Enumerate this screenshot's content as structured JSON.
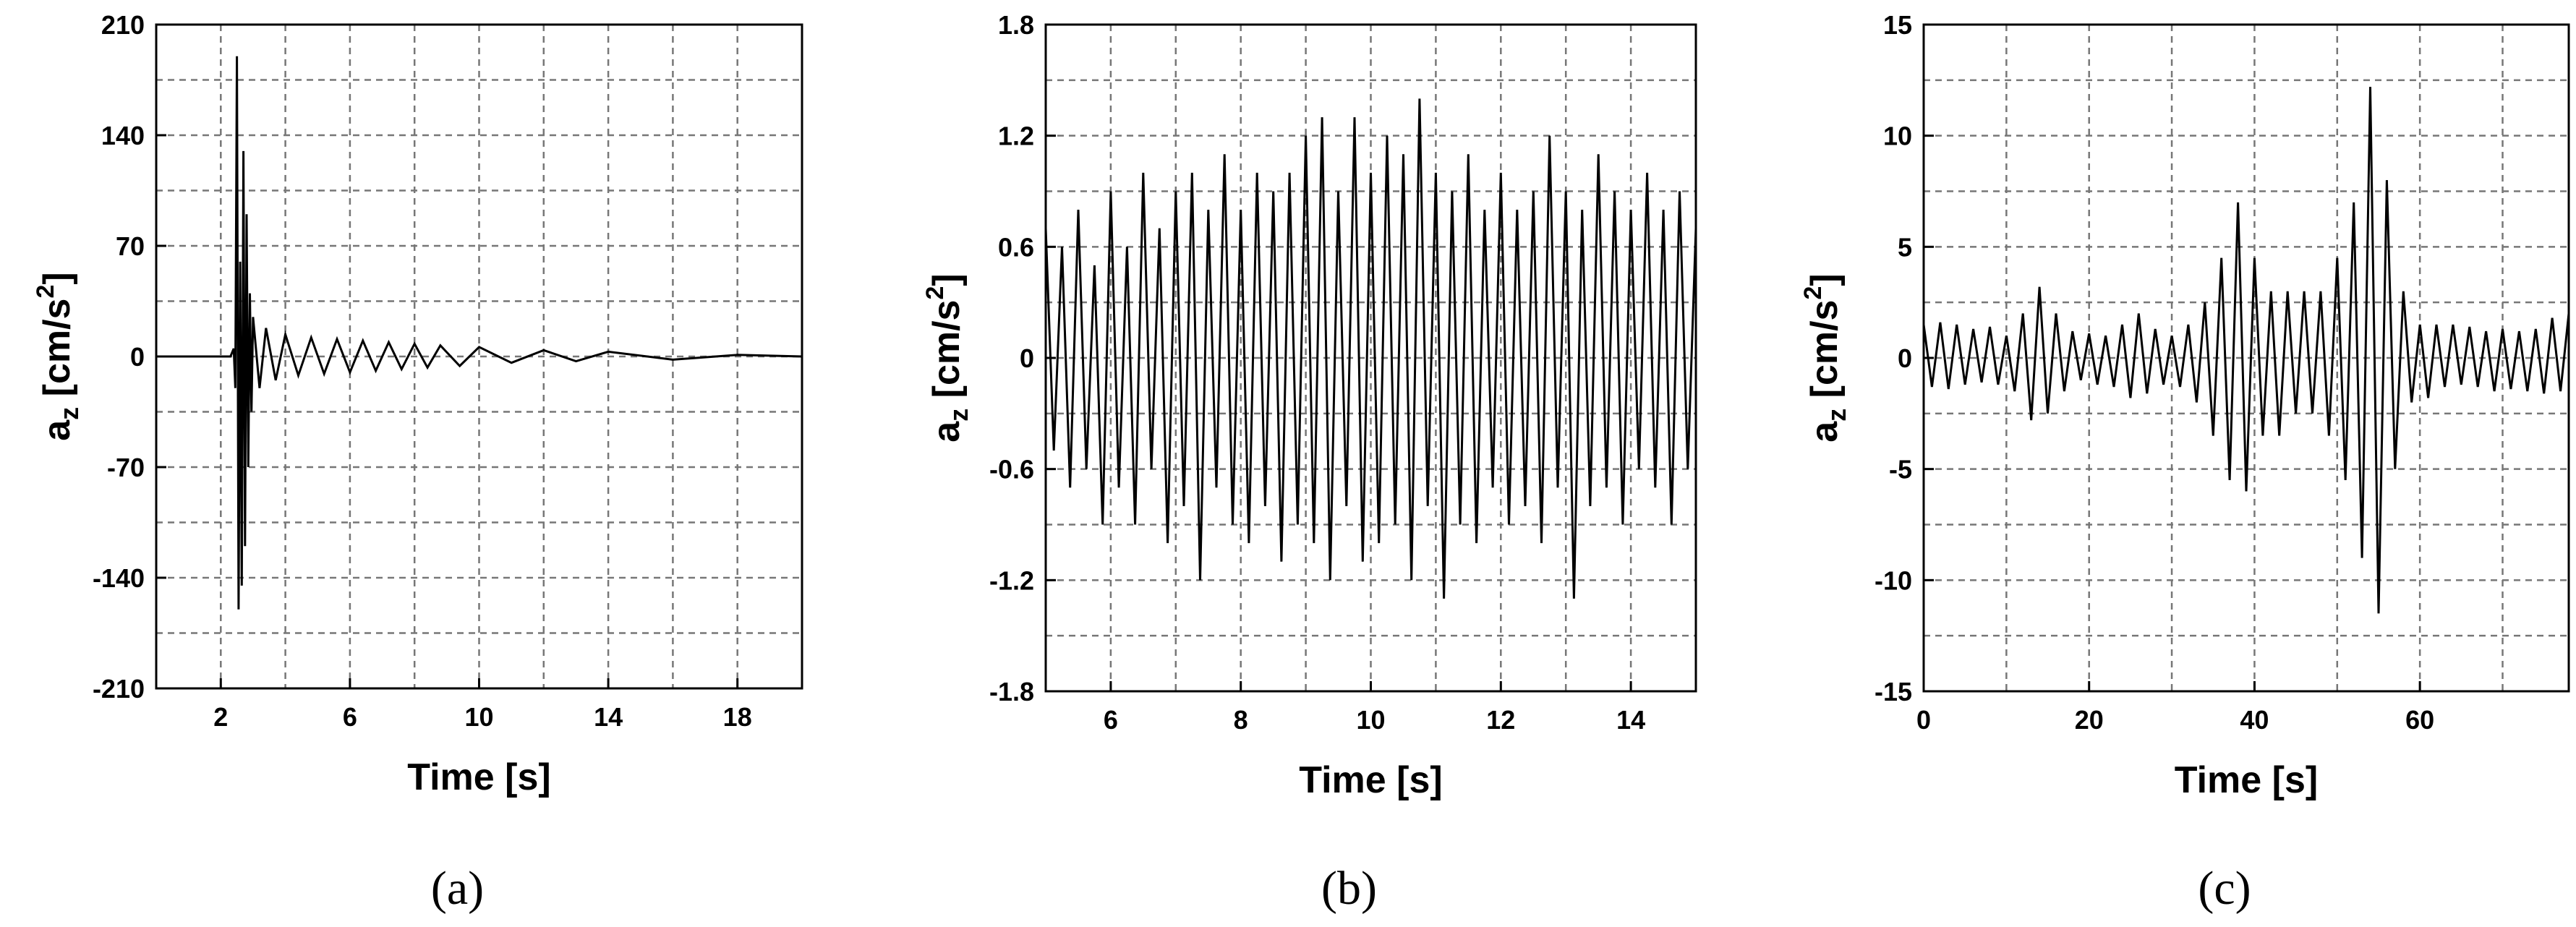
{
  "chart_data": [
    {
      "type": "line",
      "label": "(a)",
      "xlabel": "Time [s]",
      "ylabel": [
        "a",
        "z",
        " [cm/s",
        "2",
        "]"
      ],
      "color": "#000000",
      "grid": true,
      "xlim": [
        0,
        20
      ],
      "xticks": [
        2,
        6,
        10,
        14,
        18
      ],
      "minor_xticks": [
        4,
        8,
        12,
        16
      ],
      "ylim": [
        -210,
        210
      ],
      "yticks": [
        -210,
        -140,
        -70,
        0,
        70,
        140,
        210
      ],
      "minor_yticks": [
        -175,
        -105,
        -35,
        35,
        105,
        175
      ],
      "x": [
        0,
        2.3,
        2.4,
        2.45,
        2.5,
        2.55,
        2.6,
        2.65,
        2.7,
        2.75,
        2.8,
        2.85,
        2.9,
        2.95,
        3.0,
        3.2,
        3.4,
        3.7,
        4.0,
        4.4,
        4.8,
        5.2,
        5.6,
        6.0,
        6.4,
        6.8,
        7.2,
        7.6,
        8.0,
        8.4,
        8.8,
        9.4,
        10,
        11,
        12,
        13,
        14,
        16,
        18,
        20
      ],
      "values": [
        0,
        0,
        5,
        -20,
        190,
        -160,
        60,
        -145,
        130,
        -120,
        90,
        -70,
        40,
        -35,
        25,
        -20,
        18,
        -15,
        14,
        -12,
        12,
        -11,
        11,
        -10,
        10,
        -9,
        9,
        -8,
        8,
        -7,
        7,
        -6,
        6,
        -4,
        4,
        -3,
        3,
        -2,
        1,
        0
      ]
    },
    {
      "type": "line",
      "label": "(b)",
      "xlabel": "Time [s]",
      "ylabel": [
        "a",
        "z",
        " [cm/s",
        "2",
        "]"
      ],
      "color": "#000000",
      "grid": true,
      "xlim": [
        5,
        15
      ],
      "xticks": [
        6,
        8,
        10,
        12,
        14
      ],
      "minor_xticks": [
        7,
        9,
        11,
        13
      ],
      "ylim": [
        -1.8,
        1.8
      ],
      "yticks": [
        -1.8,
        -1.2,
        -0.6,
        0,
        0.6,
        1.2,
        1.8
      ],
      "minor_yticks": [
        -1.5,
        -0.9,
        -0.3,
        0.3,
        0.9,
        1.5
      ],
      "x": [
        5,
        5.125,
        5.25,
        5.375,
        5.5,
        5.625,
        5.75,
        5.875,
        6,
        6.125,
        6.25,
        6.375,
        6.5,
        6.625,
        6.75,
        6.875,
        7,
        7.125,
        7.25,
        7.375,
        7.5,
        7.625,
        7.75,
        7.875,
        8,
        8.125,
        8.25,
        8.375,
        8.5,
        8.625,
        8.75,
        8.875,
        9,
        9.125,
        9.25,
        9.375,
        9.5,
        9.625,
        9.75,
        9.875,
        10,
        10.125,
        10.25,
        10.375,
        10.5,
        10.625,
        10.75,
        10.875,
        11,
        11.125,
        11.25,
        11.375,
        11.5,
        11.625,
        11.75,
        11.875,
        12,
        12.125,
        12.25,
        12.375,
        12.5,
        12.625,
        12.75,
        12.875,
        13,
        13.125,
        13.25,
        13.375,
        13.5,
        13.625,
        13.75,
        13.875,
        14,
        14.125,
        14.25,
        14.375,
        14.5,
        14.625,
        14.75,
        14.875,
        15
      ],
      "values": [
        0.7,
        -0.5,
        0.6,
        -0.7,
        0.8,
        -0.6,
        0.5,
        -0.9,
        0.9,
        -0.7,
        0.6,
        -0.9,
        1.0,
        -0.6,
        0.7,
        -1.0,
        0.9,
        -0.8,
        1.0,
        -1.2,
        0.8,
        -0.7,
        1.1,
        -0.9,
        0.8,
        -1.0,
        1.0,
        -0.8,
        0.9,
        -1.1,
        1.0,
        -0.9,
        1.2,
        -1.0,
        1.3,
        -1.2,
        0.9,
        -0.8,
        1.3,
        -1.1,
        1.0,
        -1.0,
        1.2,
        -0.9,
        1.1,
        -1.2,
        1.4,
        -0.8,
        1.0,
        -1.3,
        0.9,
        -0.9,
        1.1,
        -1.0,
        0.8,
        -0.7,
        1.0,
        -0.9,
        0.8,
        -0.8,
        0.9,
        -1.0,
        1.2,
        -0.7,
        0.9,
        -1.3,
        0.8,
        -0.8,
        1.1,
        -0.7,
        0.9,
        -0.9,
        0.8,
        -0.6,
        1.0,
        -0.7,
        0.8,
        -0.9,
        0.9,
        -0.6,
        0.7
      ]
    },
    {
      "type": "line",
      "label": "(c)",
      "xlabel": "Time [s]",
      "ylabel": [
        "a",
        "z",
        " [cm/s",
        "2",
        "]"
      ],
      "color": "#000000",
      "grid": true,
      "xlim": [
        0,
        78
      ],
      "xticks": [
        0,
        20,
        40,
        60
      ],
      "minor_xticks": [
        10,
        30,
        50,
        70
      ],
      "ylim": [
        -15,
        15
      ],
      "yticks": [
        -15,
        -10,
        -5,
        0,
        5,
        10,
        15
      ],
      "minor_yticks": [
        -12.5,
        -7.5,
        -2.5,
        2.5,
        7.5,
        12.5
      ],
      "x": [
        0,
        1,
        2,
        3,
        4,
        5,
        6,
        7,
        8,
        9,
        10,
        11,
        12,
        13,
        14,
        15,
        16,
        17,
        18,
        19,
        20,
        21,
        22,
        23,
        24,
        25,
        26,
        27,
        28,
        29,
        30,
        31,
        32,
        33,
        34,
        35,
        36,
        37,
        38,
        39,
        40,
        41,
        42,
        43,
        44,
        45,
        46,
        47,
        48,
        49,
        50,
        51,
        52,
        53,
        54,
        55,
        56,
        57,
        58,
        59,
        60,
        61,
        62,
        63,
        64,
        65,
        66,
        67,
        68,
        69,
        70,
        71,
        72,
        73,
        74,
        75,
        76,
        77,
        78
      ],
      "values": [
        1.5,
        -1.3,
        1.6,
        -1.4,
        1.5,
        -1.2,
        1.3,
        -1.1,
        1.4,
        -1.2,
        1.0,
        -1.5,
        2.0,
        -2.8,
        3.2,
        -2.5,
        2.0,
        -1.5,
        1.2,
        -1.0,
        1.1,
        -1.2,
        1.0,
        -1.3,
        1.5,
        -1.8,
        2.0,
        -1.6,
        1.3,
        -1.2,
        1.0,
        -1.3,
        1.5,
        -2.0,
        2.5,
        -3.5,
        4.5,
        -5.5,
        7.0,
        -6.0,
        4.5,
        -3.5,
        3.0,
        -3.5,
        3.0,
        -2.5,
        3.0,
        -2.5,
        3.0,
        -3.5,
        4.5,
        -5.5,
        7.0,
        -9.0,
        12.2,
        -11.5,
        8.0,
        -5.0,
        3.0,
        -2.0,
        1.5,
        -1.8,
        1.5,
        -1.3,
        1.5,
        -1.2,
        1.4,
        -1.3,
        1.2,
        -1.5,
        1.3,
        -1.4,
        1.2,
        -1.5,
        1.3,
        -1.6,
        1.8,
        -1.5,
        2.0
      ]
    }
  ]
}
